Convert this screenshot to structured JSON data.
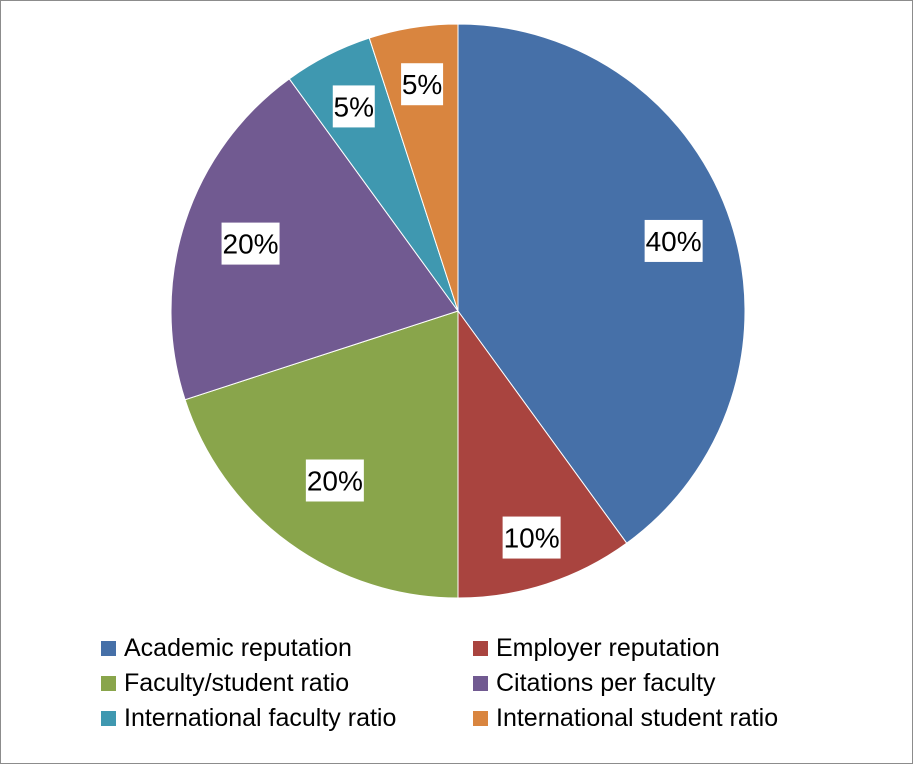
{
  "chart_data": {
    "type": "pie",
    "start": "12 o'clock, clockwise",
    "slices": [
      {
        "name": "Academic reputation",
        "value": 40,
        "label": "40%",
        "color": "#4670a8"
      },
      {
        "name": "Employer reputation",
        "value": 10,
        "label": "10%",
        "color": "#a9443f"
      },
      {
        "name": "Faculty/student ratio",
        "value": 20,
        "label": "20%",
        "color": "#89a54b"
      },
      {
        "name": "Citations per faculty",
        "value": 20,
        "label": "20%",
        "color": "#715a91"
      },
      {
        "name": "International faculty ratio",
        "value": 5,
        "label": "5%",
        "color": "#3f98b0"
      },
      {
        "name": "International student ratio",
        "value": 5,
        "label": "5%",
        "color": "#d9853f"
      }
    ],
    "legend": {
      "position": "bottom",
      "items": [
        "Academic reputation",
        "Employer reputation",
        "Faculty/student ratio",
        "Citations per faculty",
        "International faculty ratio",
        "International student ratio"
      ]
    }
  }
}
